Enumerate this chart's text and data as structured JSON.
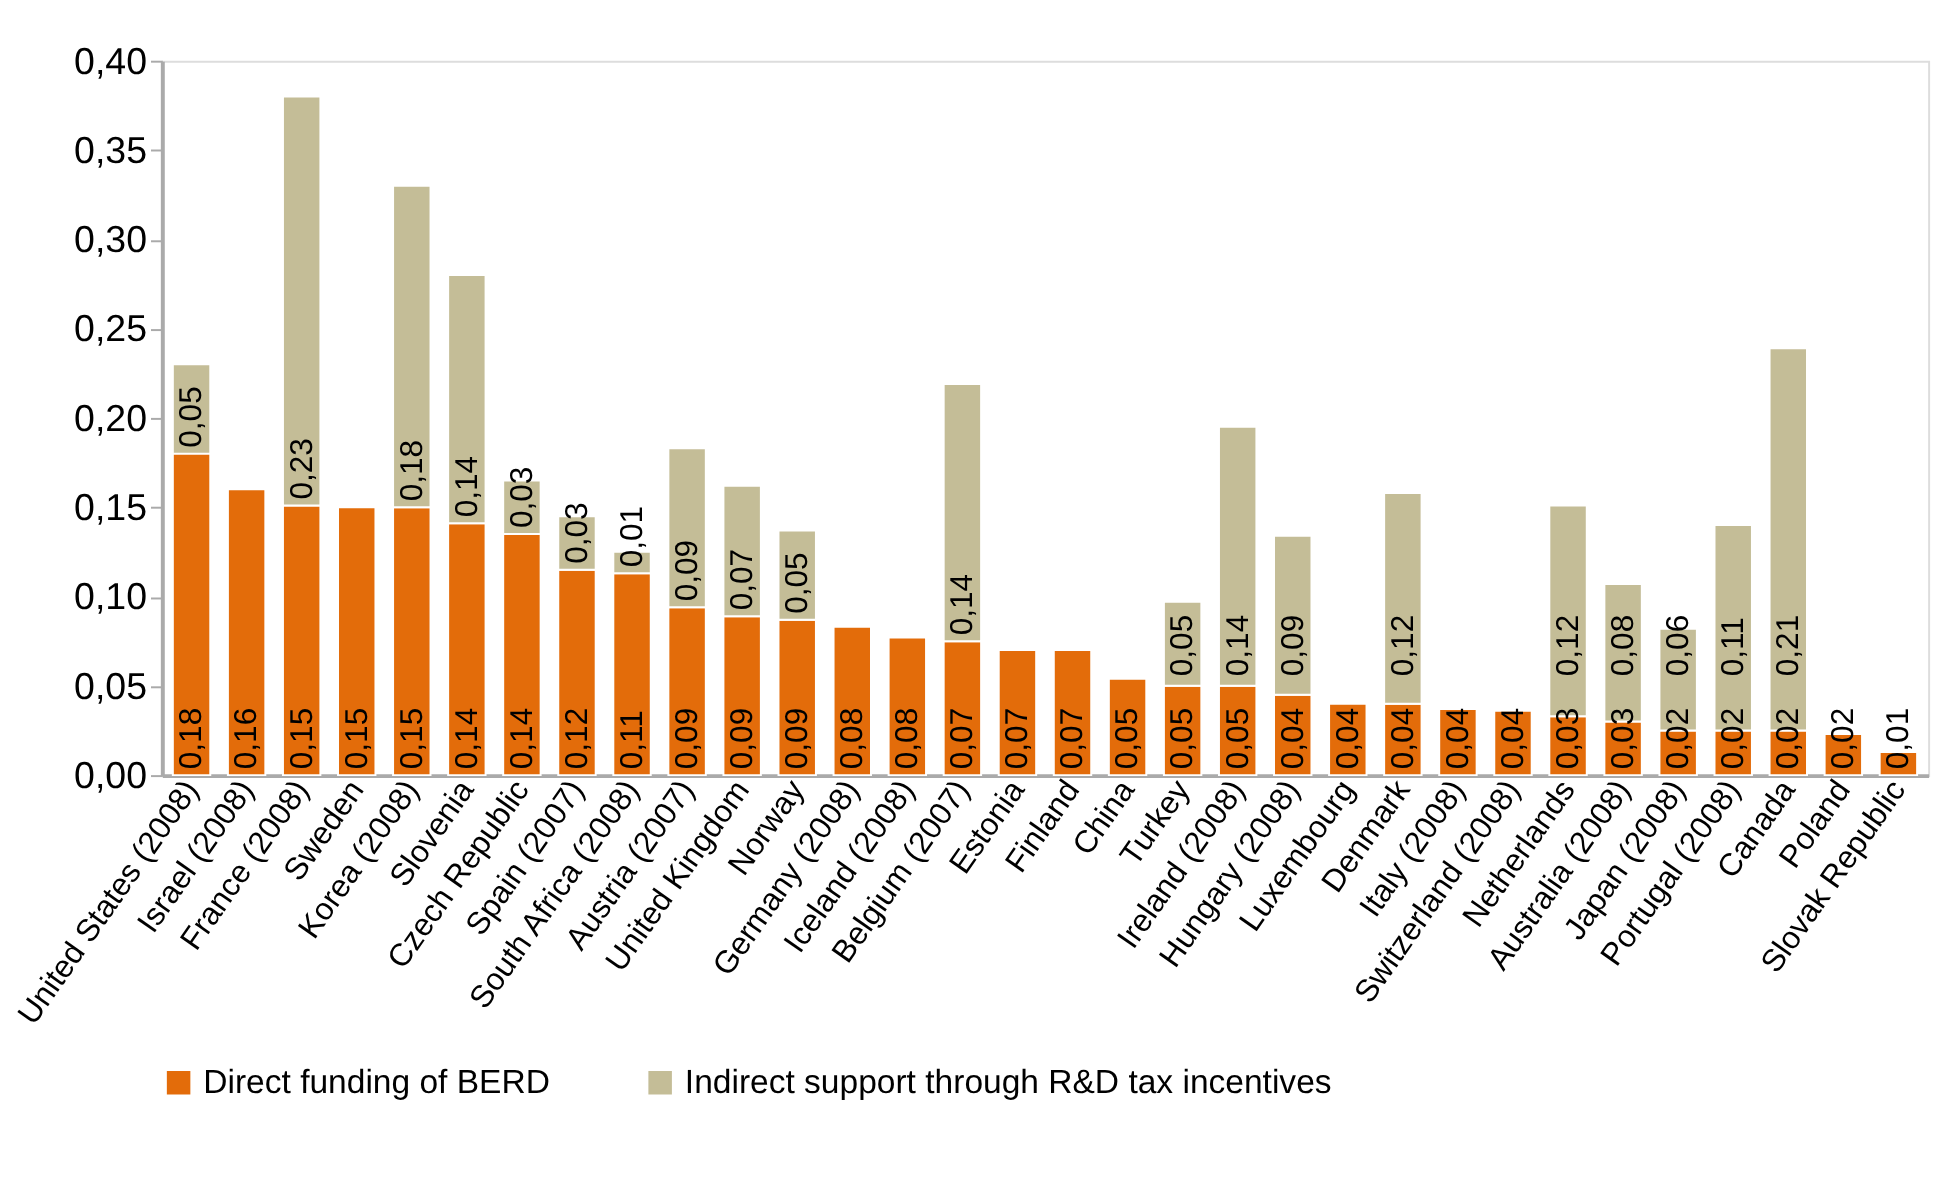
{
  "chart_data": {
    "type": "bar",
    "stacked": true,
    "categories": [
      "United States (2008)",
      "Israel (2008)",
      "France (2008)",
      "Sweden",
      "Korea (2008)",
      "Slovenia",
      "Czech Republic",
      "Spain (2007)",
      "South Africa (2008)",
      "Austria (2007)",
      "United Kingdom",
      "Norway",
      "Germany (2008)",
      "Iceland (2008)",
      "Belgium (2007)",
      "Estonia",
      "Finland",
      "China",
      "Turkey",
      "Ireland (2008)",
      "Hungary (2008)",
      "Luxembourg",
      "Denmark",
      "Italy (2008)",
      "Switzerland (2008)",
      "Netherlands",
      "Australia (2008)",
      "Japan (2008)",
      "Portugal (2008)",
      "Canada",
      "Poland",
      "Slovak Republic"
    ],
    "series": [
      {
        "name": "Direct  funding of BERD",
        "color": "#e36c0a",
        "values": [
          0.18,
          0.16,
          0.151,
          0.15,
          0.15,
          0.141,
          0.135,
          0.115,
          0.113,
          0.094,
          0.089,
          0.087,
          0.083,
          0.077,
          0.075,
          0.07,
          0.07,
          0.054,
          0.05,
          0.05,
          0.045,
          0.04,
          0.04,
          0.037,
          0.036,
          0.033,
          0.03,
          0.025,
          0.025,
          0.025,
          0.023,
          0.013
        ],
        "value_labels": [
          "0,18",
          "0,16",
          "0,15",
          "0,15",
          "0,15",
          "0,14",
          "0,14",
          "0,12",
          "0,11",
          "0,09",
          "0,09",
          "0,09",
          "0,08",
          "0,08",
          "0,07",
          "0,07",
          "0,07",
          "0,05",
          "0,05",
          "0,05",
          "0,04",
          "0,04",
          "0,04",
          "0,04",
          "0,04",
          "0,03",
          "0,03",
          "0,02",
          "0,02",
          "0,02",
          "0,02",
          "0,01"
        ]
      },
      {
        "name": "Indirect support through R&D tax incentives",
        "color": "#c4bd97",
        "values": [
          0.05,
          null,
          0.229,
          null,
          0.18,
          0.139,
          0.03,
          0.03,
          0.012,
          0.089,
          0.073,
          0.05,
          null,
          null,
          0.144,
          null,
          null,
          null,
          0.047,
          0.145,
          0.089,
          null,
          0.118,
          null,
          null,
          0.118,
          0.077,
          0.057,
          0.115,
          0.214,
          null,
          null
        ],
        "value_labels": [
          "0,05",
          null,
          "0,23",
          null,
          "0,18",
          "0,14",
          "0,03",
          "0,03",
          "0,01",
          "0,09",
          "0,07",
          "0,05",
          null,
          null,
          "0,14",
          null,
          null,
          null,
          "0,05",
          "0,14",
          "0,09",
          null,
          "0,12",
          null,
          null,
          "0,12",
          "0,08",
          "0,06",
          "0,11",
          "0,21",
          null,
          null
        ]
      }
    ],
    "ylim": [
      0,
      0.4
    ],
    "yticks": [
      {
        "value": 0,
        "label": "0,00"
      },
      {
        "value": 0.05,
        "label": "0,05"
      },
      {
        "value": 0.1,
        "label": "0,10"
      },
      {
        "value": 0.15,
        "label": "0,15"
      },
      {
        "value": 0.2,
        "label": "0,20"
      },
      {
        "value": 0.25,
        "label": "0,25"
      },
      {
        "value": 0.3,
        "label": "0,30"
      },
      {
        "value": 0.35,
        "label": "0,35"
      },
      {
        "value": 0.4,
        "label": "0,40"
      }
    ],
    "grid": false,
    "legend": "bottom"
  }
}
